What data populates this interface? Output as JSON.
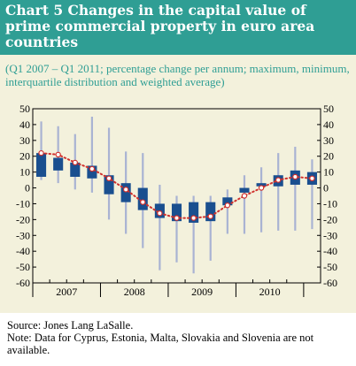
{
  "header": {
    "title": "Chart 5 Changes in the capital value of prime commercial property in euro area countries",
    "subtitle": "(Q1 2007 – Q1 2011; percentage change per annum; maximum, minimum, interquartile distribution and weighted average)"
  },
  "footer": {
    "source": "Source: Jones Lang LaSalle.",
    "note": "Note: Data for Cyprus, Estonia, Malta, Slovakia and Slovenia are not available."
  },
  "colors": {
    "header_bg": "#2f9e94",
    "panel_bg": "#f3f1dc",
    "box_fill": "#1a4f8f",
    "whisker": "#a9b3d3",
    "average": "#d0312d"
  },
  "chart_data": {
    "type": "box",
    "ylim": [
      -60,
      50
    ],
    "yticks": [
      50,
      40,
      30,
      20,
      10,
      0,
      -10,
      -20,
      -30,
      -40,
      -50,
      -60
    ],
    "years": [
      "2007",
      "2008",
      "2009",
      "2010"
    ],
    "quarters": [
      "Q1 2007",
      "Q2 2007",
      "Q3 2007",
      "Q4 2007",
      "Q1 2008",
      "Q2 2008",
      "Q3 2008",
      "Q4 2008",
      "Q1 2009",
      "Q2 2009",
      "Q3 2009",
      "Q4 2009",
      "Q1 2010",
      "Q2 2010",
      "Q3 2010",
      "Q4 2010",
      "Q1 2011"
    ],
    "max": [
      42,
      39,
      34,
      45,
      38,
      23,
      22,
      2,
      -5,
      -5,
      -5,
      -1,
      8,
      13,
      22,
      26,
      18
    ],
    "q3": [
      22,
      19,
      16,
      14,
      8,
      3,
      0,
      -10,
      -10,
      -9,
      -9,
      -6,
      0,
      3,
      8,
      11,
      10
    ],
    "q1": [
      7,
      11,
      7,
      6,
      -4,
      -9,
      -14,
      -19,
      -21,
      -22,
      -21,
      -11,
      -3,
      1,
      1,
      2,
      2
    ],
    "min": [
      5,
      3,
      -1,
      -3,
      -20,
      -29,
      -38,
      -52,
      -47,
      -54,
      -46,
      -29,
      -29,
      -28,
      -27,
      -27,
      -26
    ],
    "average": [
      22,
      21,
      16,
      12,
      6,
      -1,
      -9,
      -16,
      -19,
      -19,
      -18,
      -11,
      -5,
      0,
      5,
      7,
      6
    ]
  }
}
